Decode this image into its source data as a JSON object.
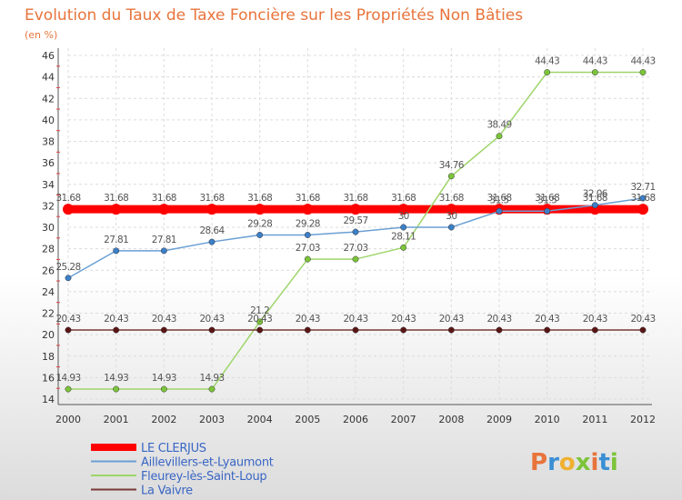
{
  "chart_data": {
    "type": "line",
    "title": "Evolution du Taux de Taxe Foncière sur les Propriétés Non Bâties",
    "subtitle": "(en %)",
    "xlabel": "",
    "ylabel": "",
    "x": [
      "2000",
      "2001",
      "2002",
      "2003",
      "2004",
      "2005",
      "2006",
      "2007",
      "2008",
      "2009",
      "2010",
      "2011",
      "2012"
    ],
    "ylim": [
      14,
      46
    ],
    "yticks": [
      "14",
      "16",
      "18",
      "20",
      "22",
      "24",
      "26",
      "28",
      "30",
      "32",
      "34",
      "36",
      "38",
      "40",
      "42",
      "44",
      "46"
    ],
    "grid": true,
    "legend_position": "bottom-left",
    "series": [
      {
        "name": "LE CLERJUS",
        "color": "#ff0000",
        "values": [
          31.68,
          31.68,
          31.68,
          31.68,
          31.68,
          31.68,
          31.68,
          31.68,
          31.68,
          31.68,
          31.68,
          31.68,
          31.68
        ],
        "labels": [
          "31.68",
          "31.68",
          "31.68",
          "31.68",
          "31.68",
          "31.68",
          "31.68",
          "31.68",
          "31.68",
          "31.68",
          "31.68",
          "31.68",
          "31.68"
        ]
      },
      {
        "name": "Aillevillers-et-Lyaumont",
        "color": "#6a9fd4",
        "point_color": "#3c7fc8",
        "values": [
          25.28,
          27.81,
          27.81,
          28.64,
          29.28,
          29.28,
          29.57,
          30,
          30,
          31.5,
          31.5,
          32.06,
          32.71
        ],
        "labels": [
          "25.28",
          "27.81",
          "27.81",
          "28.64",
          "29.28",
          "29.28",
          "29.57",
          "30",
          "30",
          "31.5",
          "31.5",
          "32.06",
          "32.71"
        ]
      },
      {
        "name": "Fleurey-lès-Saint-Loup",
        "color": "#9ed56a",
        "point_color": "#7cc43a",
        "values": [
          14.93,
          14.93,
          14.93,
          14.93,
          21.2,
          27.03,
          27.03,
          28.11,
          34.76,
          38.49,
          44.43,
          44.43,
          44.43
        ],
        "labels": [
          "14.93",
          "14.93",
          "14.93",
          "14.93",
          "21.2",
          "27.03",
          "27.03",
          "28.11",
          "34.76",
          "38.49",
          "44.43",
          "44.43",
          "44.43"
        ]
      },
      {
        "name": "La Vaivre",
        "color": "#7a3838",
        "point_color": "#5a1515",
        "values": [
          20.43,
          20.43,
          20.43,
          20.43,
          20.43,
          20.43,
          20.43,
          20.43,
          20.43,
          20.43,
          20.43,
          20.43,
          20.43
        ],
        "labels": [
          "20.43",
          "20.43",
          "20.43",
          "20.43",
          "20.43",
          "20.43",
          "20.43",
          "20.43",
          "20.43",
          "20.43",
          "20.43",
          "20.43",
          "20.43"
        ]
      }
    ]
  },
  "logo": {
    "text": "Proxiti",
    "letters": [
      "P",
      "r",
      "o",
      "x",
      "i",
      "t",
      "i"
    ],
    "colors": [
      "#e8743b",
      "#3a8fd4",
      "#f0b030",
      "#7cc43a",
      "#e8743b",
      "#3a8fd4",
      "#7cc43a"
    ]
  }
}
